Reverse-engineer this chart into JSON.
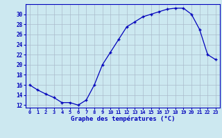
{
  "hours": [
    0,
    1,
    2,
    3,
    4,
    5,
    6,
    7,
    8,
    9,
    10,
    11,
    12,
    13,
    14,
    15,
    16,
    17,
    18,
    19,
    20,
    21,
    22,
    23
  ],
  "temps": [
    16,
    15,
    14.2,
    13.5,
    12.5,
    12.5,
    12,
    13,
    16,
    20,
    22.5,
    25,
    27.5,
    28.5,
    29.5,
    30,
    30.5,
    31,
    31.2,
    31.2,
    30,
    27,
    22,
    21
  ],
  "xlabel": "Graphe des températures (°C)",
  "ylim": [
    11.5,
    32
  ],
  "yticks": [
    12,
    14,
    16,
    18,
    20,
    22,
    24,
    26,
    28,
    30
  ],
  "xticks": [
    0,
    1,
    2,
    3,
    4,
    5,
    6,
    7,
    8,
    9,
    10,
    11,
    12,
    13,
    14,
    15,
    16,
    17,
    18,
    19,
    20,
    21,
    22,
    23
  ],
  "line_color": "#0000bb",
  "marker_color": "#0000bb",
  "bg_color": "#cce8f0",
  "grid_color": "#aabbcc",
  "axis_color": "#0000bb",
  "tick_color": "#0000bb",
  "label_color": "#0000bb"
}
